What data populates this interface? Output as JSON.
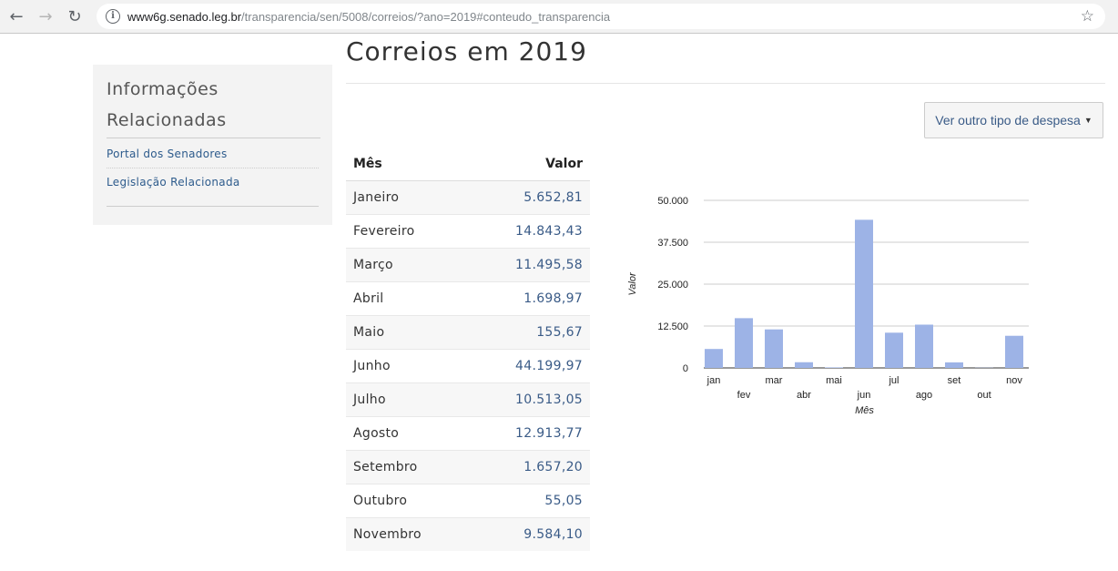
{
  "browser": {
    "url_host": "www6g.senado.leg.br",
    "url_path": "/transparencia/sen/5008/correios/?ano=2019#conteudo_transparencia"
  },
  "sidebar": {
    "title_line1": "Informações",
    "title_line2": "Relacionadas",
    "links": [
      {
        "label": "Portal dos Senadores"
      },
      {
        "label": "Legislação Relacionada"
      }
    ]
  },
  "main": {
    "title": "Correios em 2019",
    "despesa_button": "Ver outro tipo de despesa"
  },
  "table": {
    "headers": {
      "mes": "Mês",
      "valor": "Valor"
    },
    "rows": [
      {
        "mes": "Janeiro",
        "valor": "5.652,81"
      },
      {
        "mes": "Fevereiro",
        "valor": "14.843,43"
      },
      {
        "mes": "Março",
        "valor": "11.495,58"
      },
      {
        "mes": "Abril",
        "valor": "1.698,97"
      },
      {
        "mes": "Maio",
        "valor": "155,67"
      },
      {
        "mes": "Junho",
        "valor": "44.199,97"
      },
      {
        "mes": "Julho",
        "valor": "10.513,05"
      },
      {
        "mes": "Agosto",
        "valor": "12.913,77"
      },
      {
        "mes": "Setembro",
        "valor": "1.657,20"
      },
      {
        "mes": "Outubro",
        "valor": "55,05"
      },
      {
        "mes": "Novembro",
        "valor": "9.584,10"
      }
    ]
  },
  "chart_data": {
    "type": "bar",
    "categories": [
      "jan",
      "fev",
      "mar",
      "abr",
      "mai",
      "jun",
      "jul",
      "ago",
      "set",
      "out",
      "nov"
    ],
    "values": [
      5652.81,
      14843.43,
      11495.58,
      1698.97,
      155.67,
      44199.97,
      10513.05,
      12913.77,
      1657.2,
      55.05,
      9584.1
    ],
    "xlabel": "Mês",
    "ylabel": "Valor",
    "ylim": [
      0,
      50000
    ],
    "yticks": [
      0,
      12500,
      25000,
      37500,
      50000
    ],
    "ytick_labels": [
      "0",
      "12.500",
      "25.000",
      "37.500",
      "50.000"
    ],
    "bar_color": "#9db3e6",
    "grid": true,
    "legend": false
  }
}
